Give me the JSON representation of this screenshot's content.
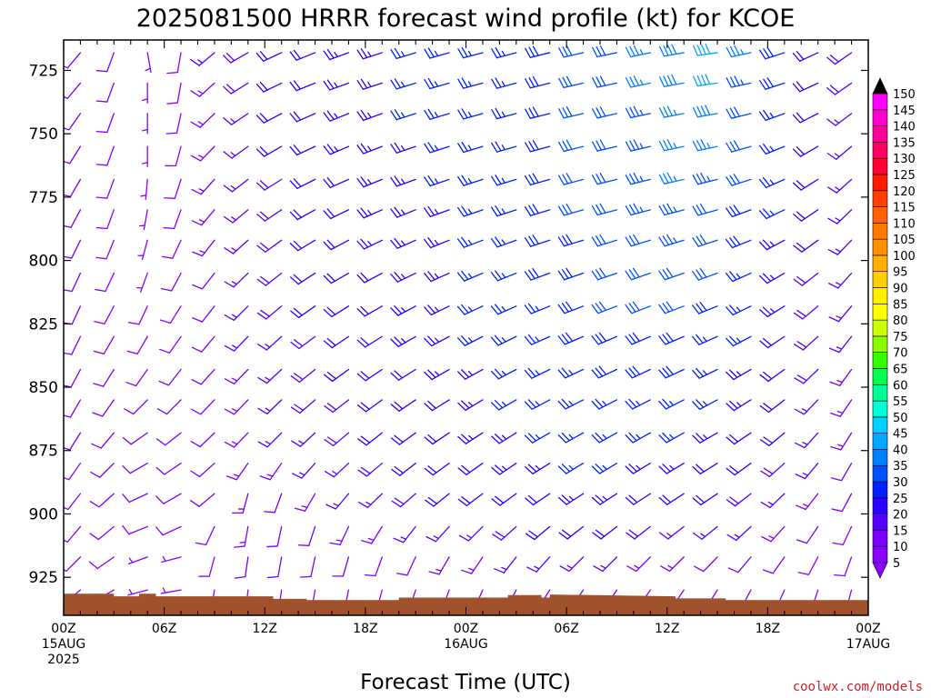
{
  "chart_data": {
    "type": "wind-barb-time-height",
    "title": "2025081500 HRRR forecast wind profile (kt) for KCOE",
    "xlabel": "Forecast Time (UTC)",
    "ylabel": "",
    "credit": "coolwx.com/models",
    "x_range_hours": [
      0,
      48
    ],
    "y_range_hpa": [
      940,
      713
    ],
    "y_ticks": [
      725,
      750,
      775,
      800,
      825,
      850,
      875,
      900,
      925
    ],
    "x_ticks": [
      {
        "hour": 0,
        "line1": "00Z",
        "line2": "15AUG",
        "line3": "2025"
      },
      {
        "hour": 6,
        "line1": "06Z",
        "line2": "",
        "line3": ""
      },
      {
        "hour": 12,
        "line1": "12Z",
        "line2": "",
        "line3": ""
      },
      {
        "hour": 18,
        "line1": "18Z",
        "line2": "",
        "line3": ""
      },
      {
        "hour": 24,
        "line1": "00Z",
        "line2": "16AUG",
        "line3": ""
      },
      {
        "hour": 30,
        "line1": "06Z",
        "line2": "",
        "line3": ""
      },
      {
        "hour": 36,
        "line1": "12Z",
        "line2": "",
        "line3": ""
      },
      {
        "hour": 42,
        "line1": "18Z",
        "line2": "",
        "line3": ""
      },
      {
        "hour": 48,
        "line1": "00Z",
        "line2": "17AUG",
        "line3": ""
      }
    ],
    "wind_levels_hpa": [
      718,
      730,
      742,
      755,
      768,
      780,
      792,
      805,
      818,
      830,
      843,
      855,
      868,
      880,
      892,
      905,
      917,
      930
    ],
    "wind_times_hours": [
      1,
      3,
      5,
      7,
      9,
      11,
      13,
      15,
      17,
      19,
      21,
      23,
      25,
      27,
      29,
      31,
      33,
      35,
      37,
      39,
      41,
      43,
      45,
      47
    ],
    "wind_speed_kt": [
      [
        12,
        10,
        6,
        8,
        15,
        18,
        20,
        22,
        24,
        24,
        25,
        25,
        26,
        26,
        28,
        30,
        32,
        35,
        38,
        42,
        35,
        28,
        22,
        18
      ],
      [
        12,
        10,
        6,
        8,
        14,
        18,
        20,
        22,
        24,
        24,
        25,
        25,
        26,
        27,
        28,
        30,
        32,
        35,
        38,
        40,
        34,
        28,
        22,
        18
      ],
      [
        11,
        10,
        6,
        8,
        14,
        17,
        20,
        22,
        23,
        24,
        25,
        25,
        26,
        27,
        28,
        30,
        32,
        34,
        37,
        38,
        32,
        27,
        22,
        17
      ],
      [
        11,
        9,
        6,
        8,
        14,
        17,
        20,
        21,
        23,
        24,
        24,
        25,
        26,
        27,
        28,
        30,
        32,
        34,
        36,
        36,
        30,
        26,
        21,
        17
      ],
      [
        11,
        9,
        6,
        8,
        13,
        16,
        19,
        21,
        22,
        23,
        24,
        25,
        26,
        27,
        28,
        30,
        32,
        33,
        35,
        34,
        30,
        25,
        20,
        16
      ],
      [
        10,
        9,
        6,
        8,
        13,
        16,
        19,
        21,
        22,
        23,
        24,
        24,
        26,
        27,
        28,
        30,
        31,
        33,
        34,
        32,
        28,
        25,
        20,
        16
      ],
      [
        10,
        9,
        7,
        8,
        13,
        16,
        19,
        20,
        22,
        23,
        24,
        24,
        25,
        27,
        28,
        29,
        31,
        32,
        33,
        31,
        28,
        24,
        20,
        16
      ],
      [
        10,
        9,
        7,
        8,
        12,
        15,
        18,
        20,
        21,
        22,
        24,
        24,
        25,
        26,
        28,
        29,
        30,
        31,
        32,
        30,
        27,
        24,
        19,
        15
      ],
      [
        10,
        9,
        8,
        9,
        12,
        15,
        18,
        20,
        21,
        22,
        23,
        24,
        25,
        26,
        27,
        28,
        30,
        30,
        30,
        28,
        26,
        23,
        19,
        15
      ],
      [
        10,
        9,
        8,
        9,
        12,
        15,
        17,
        19,
        20,
        22,
        23,
        23,
        25,
        26,
        27,
        28,
        29,
        29,
        29,
        27,
        25,
        22,
        18,
        15
      ],
      [
        10,
        10,
        9,
        10,
        12,
        14,
        17,
        19,
        20,
        21,
        22,
        23,
        24,
        25,
        27,
        27,
        28,
        28,
        28,
        26,
        24,
        22,
        18,
        14
      ],
      [
        10,
        10,
        10,
        12,
        12,
        14,
        16,
        18,
        19,
        20,
        22,
        22,
        24,
        25,
        26,
        27,
        27,
        27,
        26,
        25,
        23,
        21,
        17,
        14
      ],
      [
        10,
        10,
        10,
        12,
        12,
        13,
        15,
        17,
        18,
        20,
        21,
        22,
        23,
        24,
        25,
        26,
        26,
        26,
        25,
        24,
        22,
        20,
        17,
        13
      ],
      [
        9,
        10,
        10,
        12,
        12,
        14,
        14,
        16,
        17,
        19,
        20,
        21,
        22,
        23,
        24,
        25,
        25,
        24,
        23,
        22,
        20,
        18,
        15,
        12
      ],
      [
        9,
        10,
        10,
        12,
        12,
        14,
        12,
        14,
        15,
        17,
        18,
        20,
        20,
        22,
        22,
        23,
        23,
        22,
        20,
        20,
        18,
        16,
        14,
        10
      ],
      [
        8,
        8,
        8,
        8,
        10,
        14,
        12,
        12,
        13,
        14,
        15,
        16,
        17,
        19,
        20,
        21,
        20,
        19,
        17,
        16,
        15,
        13,
        11,
        9
      ],
      [
        8,
        8,
        6,
        6,
        8,
        10,
        10,
        10,
        11,
        12,
        12,
        13,
        14,
        15,
        16,
        16,
        16,
        14,
        13,
        12,
        12,
        10,
        9,
        8
      ],
      [
        6,
        6,
        5,
        5,
        5,
        6,
        6,
        7,
        8,
        8,
        8,
        9,
        10,
        10,
        10,
        10,
        10,
        9,
        8,
        8,
        7,
        7,
        6,
        6
      ]
    ],
    "wind_from_deg": [
      [
        220,
        200,
        170,
        190,
        230,
        240,
        245,
        248,
        250,
        252,
        253,
        254,
        255,
        255,
        256,
        257,
        258,
        258,
        260,
        262,
        258,
        252,
        245,
        235
      ],
      [
        220,
        200,
        180,
        190,
        228,
        238,
        244,
        248,
        250,
        252,
        253,
        254,
        255,
        255,
        256,
        257,
        258,
        258,
        260,
        262,
        258,
        252,
        245,
        235
      ],
      [
        215,
        200,
        180,
        192,
        226,
        236,
        242,
        246,
        248,
        250,
        252,
        253,
        254,
        255,
        256,
        257,
        257,
        258,
        259,
        260,
        256,
        250,
        243,
        233
      ],
      [
        212,
        200,
        180,
        195,
        224,
        234,
        240,
        245,
        247,
        249,
        251,
        252,
        253,
        254,
        255,
        256,
        257,
        257,
        258,
        258,
        254,
        248,
        240,
        230
      ],
      [
        210,
        200,
        185,
        198,
        222,
        232,
        238,
        243,
        246,
        248,
        250,
        251,
        252,
        253,
        254,
        255,
        256,
        256,
        257,
        256,
        252,
        246,
        238,
        228
      ],
      [
        208,
        200,
        190,
        200,
        220,
        230,
        236,
        241,
        244,
        246,
        248,
        250,
        251,
        252,
        253,
        254,
        255,
        255,
        255,
        254,
        250,
        244,
        236,
        226
      ],
      [
        206,
        202,
        195,
        205,
        218,
        228,
        234,
        239,
        242,
        244,
        246,
        248,
        249,
        250,
        252,
        253,
        253,
        253,
        253,
        252,
        248,
        242,
        234,
        224
      ],
      [
        205,
        205,
        200,
        208,
        218,
        226,
        232,
        237,
        240,
        242,
        244,
        246,
        247,
        248,
        250,
        251,
        251,
        251,
        251,
        250,
        246,
        240,
        232,
        222
      ],
      [
        205,
        208,
        205,
        212,
        218,
        225,
        230,
        235,
        238,
        240,
        242,
        244,
        245,
        246,
        248,
        249,
        249,
        249,
        249,
        248,
        244,
        238,
        230,
        220
      ],
      [
        206,
        210,
        210,
        215,
        220,
        224,
        228,
        233,
        236,
        238,
        240,
        242,
        243,
        244,
        246,
        247,
        247,
        247,
        247,
        246,
        242,
        236,
        228,
        218
      ],
      [
        208,
        212,
        215,
        218,
        222,
        224,
        227,
        231,
        234,
        236,
        238,
        240,
        241,
        242,
        244,
        245,
        245,
        245,
        245,
        244,
        240,
        234,
        226,
        216
      ],
      [
        210,
        215,
        225,
        225,
        224,
        224,
        226,
        229,
        232,
        234,
        236,
        238,
        239,
        240,
        242,
        243,
        243,
        243,
        243,
        242,
        238,
        232,
        224,
        214
      ],
      [
        212,
        220,
        235,
        232,
        226,
        224,
        225,
        227,
        230,
        232,
        234,
        236,
        237,
        238,
        240,
        241,
        241,
        241,
        241,
        240,
        236,
        230,
        222,
        212
      ],
      [
        215,
        225,
        240,
        236,
        228,
        215,
        215,
        222,
        227,
        230,
        232,
        234,
        235,
        236,
        238,
        239,
        239,
        239,
        239,
        238,
        234,
        228,
        220,
        210
      ],
      [
        218,
        228,
        245,
        240,
        230,
        195,
        200,
        210,
        220,
        226,
        229,
        231,
        233,
        234,
        236,
        237,
        237,
        237,
        237,
        236,
        232,
        226,
        218,
        208
      ],
      [
        220,
        230,
        248,
        245,
        205,
        190,
        192,
        198,
        205,
        212,
        218,
        222,
        225,
        228,
        230,
        232,
        232,
        232,
        232,
        231,
        227,
        222,
        214,
        205
      ],
      [
        225,
        235,
        250,
        255,
        195,
        188,
        190,
        192,
        196,
        200,
        205,
        210,
        214,
        218,
        222,
        225,
        225,
        225,
        225,
        224,
        220,
        215,
        208,
        200
      ],
      [
        230,
        240,
        255,
        260,
        190,
        186,
        188,
        190,
        192,
        195,
        198,
        200,
        204,
        208,
        212,
        214,
        214,
        214,
        214,
        212,
        208,
        204,
        198,
        195
      ]
    ],
    "terrain_surface_hpa": [
      {
        "h": 0.0,
        "p": 931.5
      },
      {
        "h": 3.0,
        "p": 931.5
      },
      {
        "h": 3.0,
        "p": 932.5
      },
      {
        "h": 4.5,
        "p": 932.5
      },
      {
        "h": 4.5,
        "p": 931.5
      },
      {
        "h": 5.5,
        "p": 931.5
      },
      {
        "h": 5.5,
        "p": 932.5
      },
      {
        "h": 12.5,
        "p": 932.5
      },
      {
        "h": 12.5,
        "p": 933.5
      },
      {
        "h": 14.5,
        "p": 933.5
      },
      {
        "h": 14.5,
        "p": 934.0
      },
      {
        "h": 20.0,
        "p": 934.0
      },
      {
        "h": 20.0,
        "p": 933.0
      },
      {
        "h": 26.5,
        "p": 933.0
      },
      {
        "h": 26.5,
        "p": 932.0
      },
      {
        "h": 28.5,
        "p": 932.0
      },
      {
        "h": 28.5,
        "p": 933.0
      },
      {
        "h": 29.0,
        "p": 933.0
      },
      {
        "h": 29.0,
        "p": 931.8
      },
      {
        "h": 36.5,
        "p": 932.5
      },
      {
        "h": 36.5,
        "p": 933.3
      },
      {
        "h": 39.5,
        "p": 933.3
      },
      {
        "h": 39.5,
        "p": 934.0
      },
      {
        "h": 48.0,
        "p": 934.0
      }
    ],
    "terrain_color": "#a0522d",
    "colorbar": {
      "labels": [
        5,
        10,
        15,
        20,
        25,
        30,
        35,
        40,
        45,
        50,
        55,
        60,
        65,
        70,
        75,
        80,
        85,
        90,
        95,
        100,
        105,
        110,
        115,
        120,
        125,
        130,
        135,
        140,
        145,
        150
      ],
      "colors": [
        "#8b00ff",
        "#7a00ff",
        "#5500ff",
        "#2a00ff",
        "#0020ff",
        "#0050ff",
        "#0080ff",
        "#00a8ff",
        "#00d0ff",
        "#00ffd8",
        "#00ff99",
        "#00ff50",
        "#33ff00",
        "#88ff00",
        "#ccff00",
        "#ffff00",
        "#ffee00",
        "#ffd000",
        "#ffb000",
        "#ff9000",
        "#ff7800",
        "#ff6000",
        "#ff4000",
        "#ff1a00",
        "#ff0033",
        "#ff0066",
        "#ff0099",
        "#ff00cc",
        "#ff00ff",
        "#000000"
      ]
    }
  }
}
